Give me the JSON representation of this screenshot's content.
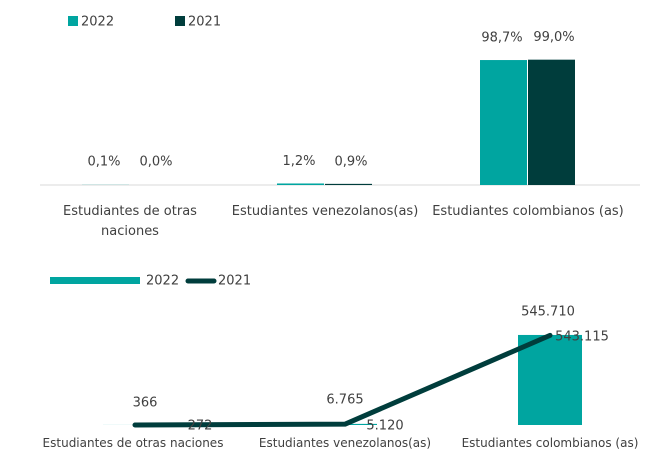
{
  "chart_data": [
    {
      "type": "bar",
      "categories": [
        "Estudiantes de otras naciones",
        "Estudiantes venezolanos(as)",
        "Estudiantes colombianos (as)"
      ],
      "series": [
        {
          "name": "2022",
          "color": "#00a5a0",
          "values": [
            0.1,
            1.2,
            98.7
          ],
          "value_labels": [
            "0,1%",
            "1,2%",
            "98,7%"
          ]
        },
        {
          "name": "2021",
          "color": "#003d3c",
          "values": [
            0.0,
            0.9,
            99.0
          ],
          "value_labels": [
            "0,0%",
            "0,9%",
            "99,0%"
          ]
        }
      ],
      "ylim": [
        0,
        100
      ]
    },
    {
      "type": "combo",
      "categories": [
        "Estudiantes de otras naciones",
        "Estudiantes venezolanos(as)",
        "Estudiantes colombianos (as)"
      ],
      "series": [
        {
          "name": "2022",
          "type": "bar",
          "color": "#00a5a0",
          "values": [
            366,
            6765,
            545710
          ],
          "value_labels": [
            "366",
            "6.765",
            "545.710"
          ]
        },
        {
          "name": "2021",
          "type": "line",
          "color": "#003d3c",
          "values": [
            272,
            5120,
            543115
          ],
          "value_labels": [
            "272",
            "5.120",
            "543.115"
          ]
        }
      ],
      "ylim": [
        0,
        600000
      ]
    }
  ]
}
